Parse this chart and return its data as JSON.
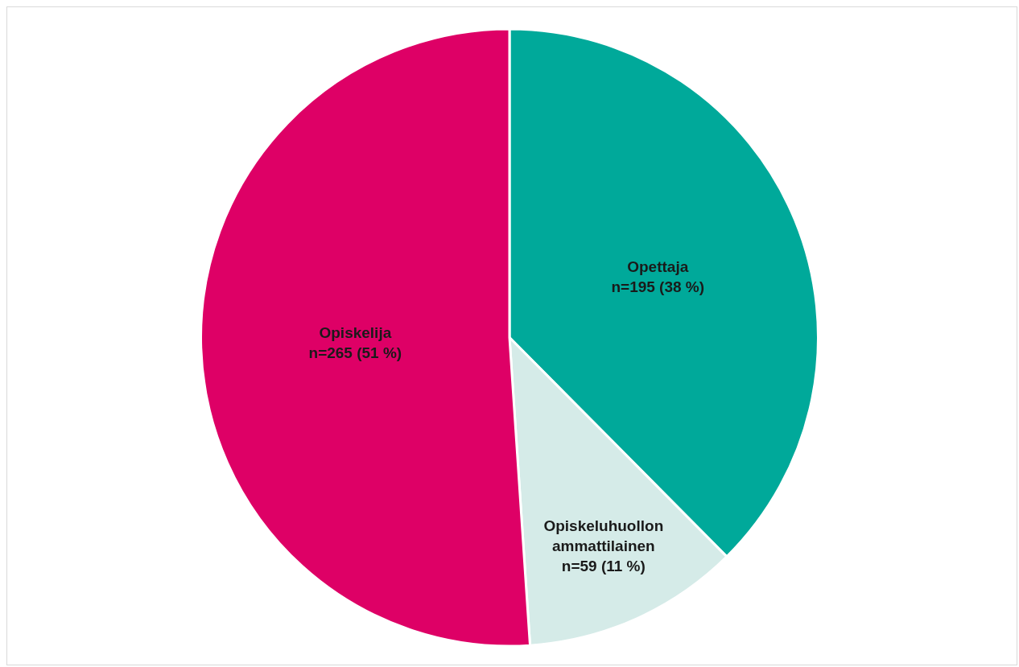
{
  "chart_data": {
    "type": "pie",
    "categories": [
      "Opettaja",
      "Opiskeluhuollon ammattilainen",
      "Opiskelija"
    ],
    "values": [
      195,
      59,
      265
    ],
    "value_labels": [
      "n=195 (38 %)",
      "n=59 (11 %)",
      "n=265 (51 %)"
    ],
    "colors": [
      "#00a99a",
      "#d5ebe8",
      "#de0066"
    ],
    "legend": false
  }
}
